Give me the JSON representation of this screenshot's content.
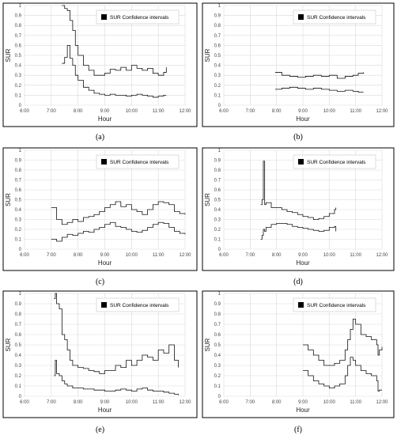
{
  "chart_data": [
    {
      "caption": "(a)",
      "type": "line",
      "title": "",
      "xlabel": "Hour",
      "ylabel": "SUR",
      "xticks": [
        "6:00",
        "7:00",
        "8:00",
        "9:00",
        "10:00",
        "11:00",
        "12:00"
      ],
      "yticks": [
        "0",
        "0.1",
        "0.2",
        "0.3",
        "0.4",
        "0.5",
        "0.6",
        "0.7",
        "0.8",
        "0.9",
        "1"
      ],
      "xlim": [
        6,
        12
      ],
      "ylim": [
        0,
        1
      ],
      "grid": true,
      "legend": {
        "label": "SUR Confidence intervals",
        "position": "top-right"
      },
      "series": [
        {
          "x": [
            7.4,
            7.5,
            7.6,
            7.7,
            7.8,
            7.9,
            8.0,
            8.2,
            8.4,
            8.6,
            8.8,
            9.0,
            9.2,
            9.4,
            9.6,
            9.8,
            10.0,
            10.2,
            10.4,
            10.6,
            10.8,
            11.0,
            11.2,
            11.3
          ],
          "y": [
            1.0,
            0.97,
            0.95,
            0.85,
            0.75,
            0.6,
            0.5,
            0.4,
            0.35,
            0.3,
            0.3,
            0.32,
            0.36,
            0.35,
            0.38,
            0.35,
            0.4,
            0.37,
            0.35,
            0.37,
            0.32,
            0.3,
            0.33,
            0.38
          ]
        },
        {
          "x": [
            7.4,
            7.5,
            7.6,
            7.7,
            7.8,
            7.9,
            8.0,
            8.2,
            8.4,
            8.6,
            8.8,
            9.0,
            9.2,
            9.4,
            9.6,
            9.8,
            10.0,
            10.2,
            10.4,
            10.6,
            10.8,
            11.0,
            11.2,
            11.3
          ],
          "y": [
            0.42,
            0.48,
            0.6,
            0.47,
            0.4,
            0.3,
            0.25,
            0.18,
            0.15,
            0.12,
            0.11,
            0.1,
            0.11,
            0.1,
            0.1,
            0.09,
            0.1,
            0.11,
            0.1,
            0.09,
            0.08,
            0.09,
            0.1,
            0.1
          ]
        }
      ]
    },
    {
      "caption": "(b)",
      "type": "line",
      "title": "",
      "xlabel": "Hour",
      "ylabel": "SUR",
      "xticks": [
        "6:00",
        "7:00",
        "8:00",
        "9:00",
        "10:00",
        "11:00",
        "12:00"
      ],
      "yticks": [
        "0",
        "0.1",
        "0.2",
        "0.3",
        "0.4",
        "0.5",
        "0.6",
        "0.7",
        "0.8",
        "0.9",
        "1"
      ],
      "xlim": [
        6,
        12
      ],
      "ylim": [
        0,
        1
      ],
      "grid": true,
      "legend": {
        "label": "SUR Confidence intervals",
        "position": "top-right"
      },
      "series": [
        {
          "x": [
            7.95,
            8.2,
            8.5,
            8.8,
            9.1,
            9.4,
            9.7,
            10.0,
            10.3,
            10.6,
            10.9,
            11.1,
            11.3
          ],
          "y": [
            0.33,
            0.3,
            0.29,
            0.28,
            0.29,
            0.3,
            0.29,
            0.3,
            0.27,
            0.29,
            0.3,
            0.32,
            0.33
          ]
        },
        {
          "x": [
            7.95,
            8.2,
            8.5,
            8.8,
            9.1,
            9.4,
            9.7,
            10.0,
            10.3,
            10.6,
            10.9,
            11.1,
            11.3
          ],
          "y": [
            0.16,
            0.17,
            0.18,
            0.17,
            0.16,
            0.17,
            0.16,
            0.15,
            0.14,
            0.15,
            0.14,
            0.13,
            0.13
          ]
        }
      ]
    },
    {
      "caption": "(c)",
      "type": "line",
      "title": "",
      "xlabel": "Hour",
      "ylabel": "SUR",
      "xticks": [
        "6:00",
        "7:00",
        "8:00",
        "9:00",
        "10:00",
        "11:00",
        "12:00"
      ],
      "yticks": [
        "0",
        "0.1",
        "0.2",
        "0.3",
        "0.4",
        "0.5",
        "0.6",
        "0.7",
        "0.8",
        "0.9",
        "1"
      ],
      "xlim": [
        6,
        12
      ],
      "ylim": [
        0,
        1
      ],
      "grid": true,
      "legend": {
        "label": "SUR Confidence intervals",
        "position": "top-right"
      },
      "series": [
        {
          "x": [
            7.0,
            7.1,
            7.2,
            7.4,
            7.6,
            7.8,
            8.0,
            8.2,
            8.4,
            8.6,
            8.8,
            9.0,
            9.2,
            9.4,
            9.6,
            9.8,
            10.0,
            10.2,
            10.4,
            10.6,
            10.8,
            11.0,
            11.2,
            11.4,
            11.6,
            11.8,
            12.0
          ],
          "y": [
            0.42,
            0.42,
            0.3,
            0.25,
            0.27,
            0.3,
            0.28,
            0.32,
            0.33,
            0.35,
            0.38,
            0.42,
            0.45,
            0.48,
            0.43,
            0.45,
            0.4,
            0.38,
            0.35,
            0.4,
            0.45,
            0.48,
            0.47,
            0.45,
            0.38,
            0.36,
            0.35
          ]
        },
        {
          "x": [
            7.0,
            7.2,
            7.4,
            7.6,
            7.8,
            8.0,
            8.2,
            8.4,
            8.6,
            8.8,
            9.0,
            9.2,
            9.4,
            9.6,
            9.8,
            10.0,
            10.2,
            10.4,
            10.6,
            10.8,
            11.0,
            11.2,
            11.4,
            11.6,
            11.8,
            12.0
          ],
          "y": [
            0.1,
            0.08,
            0.12,
            0.15,
            0.14,
            0.16,
            0.18,
            0.17,
            0.2,
            0.22,
            0.25,
            0.27,
            0.23,
            0.22,
            0.2,
            0.18,
            0.17,
            0.19,
            0.22,
            0.25,
            0.27,
            0.26,
            0.22,
            0.18,
            0.16,
            0.15
          ]
        }
      ]
    },
    {
      "caption": "(d)",
      "type": "line",
      "title": "",
      "xlabel": "Hour",
      "ylabel": "SUR",
      "xticks": [
        "6:00",
        "7:00",
        "8:00",
        "9:00",
        "10:00",
        "11:00",
        "12:00"
      ],
      "yticks": [
        "0",
        "0.1",
        "0.2",
        "0.3",
        "0.4",
        "0.5",
        "0.6",
        "0.7",
        "0.8",
        "0.9",
        "1"
      ],
      "xlim": [
        6,
        12
      ],
      "ylim": [
        0,
        1
      ],
      "grid": true,
      "legend": {
        "label": "SUR Confidence intervals",
        "position": "top-right"
      },
      "series": [
        {
          "x": [
            7.4,
            7.45,
            7.5,
            7.55,
            7.6,
            7.8,
            8.0,
            8.2,
            8.4,
            8.6,
            8.8,
            9.0,
            9.2,
            9.4,
            9.6,
            9.8,
            10.0,
            10.2,
            10.25
          ],
          "y": [
            0.45,
            0.5,
            0.89,
            0.45,
            0.47,
            0.42,
            0.42,
            0.4,
            0.38,
            0.37,
            0.35,
            0.33,
            0.32,
            0.3,
            0.31,
            0.33,
            0.36,
            0.4,
            0.42
          ]
        },
        {
          "x": [
            7.4,
            7.45,
            7.5,
            7.55,
            7.6,
            7.8,
            8.0,
            8.2,
            8.4,
            8.6,
            8.8,
            9.0,
            9.2,
            9.4,
            9.6,
            9.8,
            10.0,
            10.2,
            10.25
          ],
          "y": [
            0.1,
            0.14,
            0.2,
            0.18,
            0.22,
            0.25,
            0.26,
            0.26,
            0.25,
            0.23,
            0.22,
            0.21,
            0.2,
            0.19,
            0.18,
            0.19,
            0.22,
            0.23,
            0.18
          ]
        }
      ]
    },
    {
      "caption": "(e)",
      "type": "line",
      "title": "",
      "xlabel": "Hour",
      "ylabel": "SUR",
      "xticks": [
        "6:00",
        "7:00",
        "8:00",
        "9:00",
        "10:00",
        "11:00",
        "12:00"
      ],
      "yticks": [
        "0",
        "0.1",
        "0.2",
        "0.3",
        "0.4",
        "0.5",
        "0.6",
        "0.7",
        "0.8",
        "0.9",
        "1"
      ],
      "xlim": [
        6,
        12
      ],
      "ylim": [
        0,
        1
      ],
      "grid": true,
      "legend": {
        "label": "SUR Confidence intervals",
        "position": "top-right"
      },
      "series": [
        {
          "x": [
            7.1,
            7.15,
            7.2,
            7.3,
            7.4,
            7.5,
            7.6,
            7.7,
            7.8,
            8.0,
            8.2,
            8.4,
            8.6,
            8.8,
            9.0,
            9.2,
            9.4,
            9.6,
            9.8,
            10.0,
            10.2,
            10.4,
            10.6,
            10.8,
            11.0,
            11.2,
            11.4,
            11.6,
            11.75
          ],
          "y": [
            0.95,
            1.0,
            0.9,
            0.85,
            0.6,
            0.55,
            0.45,
            0.35,
            0.3,
            0.28,
            0.27,
            0.25,
            0.24,
            0.22,
            0.25,
            0.25,
            0.3,
            0.28,
            0.35,
            0.3,
            0.35,
            0.4,
            0.38,
            0.35,
            0.45,
            0.42,
            0.5,
            0.35,
            0.28
          ]
        },
        {
          "x": [
            7.1,
            7.15,
            7.2,
            7.3,
            7.4,
            7.5,
            7.6,
            7.8,
            8.0,
            8.2,
            8.4,
            8.6,
            8.8,
            9.0,
            9.2,
            9.4,
            9.6,
            9.8,
            10.0,
            10.2,
            10.4,
            10.6,
            10.8,
            11.0,
            11.2,
            11.4,
            11.6,
            11.75
          ],
          "y": [
            0.2,
            0.35,
            0.22,
            0.2,
            0.15,
            0.12,
            0.1,
            0.08,
            0.08,
            0.07,
            0.07,
            0.06,
            0.06,
            0.05,
            0.05,
            0.06,
            0.07,
            0.06,
            0.05,
            0.07,
            0.08,
            0.06,
            0.05,
            0.05,
            0.04,
            0.03,
            0.02,
            0.01
          ]
        }
      ]
    },
    {
      "caption": "(f)",
      "type": "line",
      "title": "",
      "xlabel": "Hour",
      "ylabel": "SUR",
      "xticks": [
        "6:00",
        "7:00",
        "8:00",
        "9:00",
        "10:00",
        "11:00",
        "12:00"
      ],
      "yticks": [
        "0",
        "0.1",
        "0.2",
        "0.3",
        "0.4",
        "0.5",
        "0.6",
        "0.7",
        "0.8",
        "0.9",
        "1"
      ],
      "xlim": [
        6,
        12
      ],
      "ylim": [
        0,
        1
      ],
      "grid": true,
      "legend": {
        "label": "SUR Confidence intervals",
        "position": "top-right"
      },
      "series": [
        {
          "x": [
            9.0,
            9.2,
            9.4,
            9.6,
            9.8,
            10.0,
            10.2,
            10.4,
            10.6,
            10.7,
            10.8,
            10.9,
            11.0,
            11.2,
            11.4,
            11.6,
            11.8,
            11.85,
            11.9,
            12.0
          ],
          "y": [
            0.5,
            0.45,
            0.4,
            0.35,
            0.3,
            0.3,
            0.32,
            0.35,
            0.45,
            0.55,
            0.65,
            0.75,
            0.7,
            0.6,
            0.58,
            0.55,
            0.5,
            0.4,
            0.45,
            0.48
          ]
        },
        {
          "x": [
            9.0,
            9.2,
            9.4,
            9.6,
            9.8,
            10.0,
            10.2,
            10.4,
            10.6,
            10.7,
            10.8,
            10.9,
            11.0,
            11.2,
            11.4,
            11.6,
            11.8,
            11.85,
            11.9,
            12.0
          ],
          "y": [
            0.25,
            0.2,
            0.15,
            0.12,
            0.1,
            0.08,
            0.1,
            0.12,
            0.2,
            0.3,
            0.38,
            0.35,
            0.3,
            0.25,
            0.22,
            0.2,
            0.15,
            0.05,
            0.06,
            0.06
          ]
        }
      ]
    }
  ]
}
